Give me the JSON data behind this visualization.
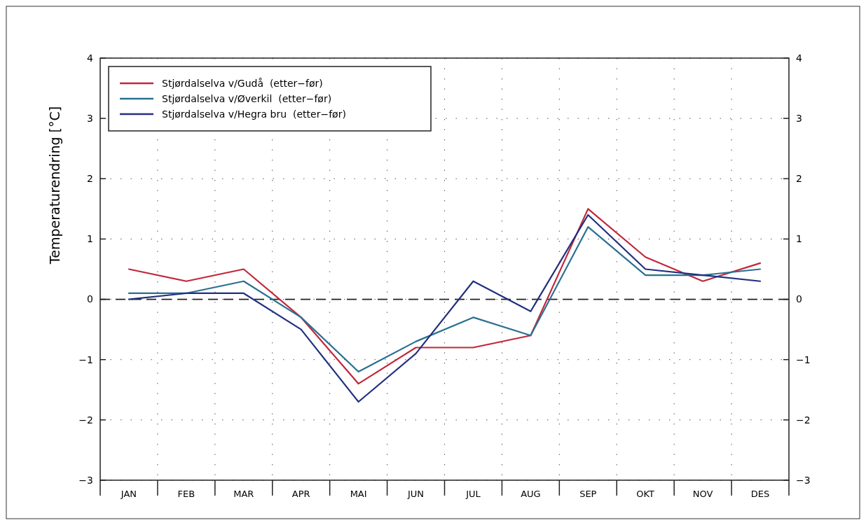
{
  "chart_data": {
    "type": "line",
    "ylabel": "Temperaturendring [°C]",
    "categories": [
      "JAN",
      "FEB",
      "MAR",
      "APR",
      "MAI",
      "JUN",
      "JUL",
      "AUG",
      "SEP",
      "OKT",
      "NOV",
      "DES"
    ],
    "series": [
      {
        "name": "Stjørdalselva v/Gudå  (etter−før)",
        "color": "#c0283a",
        "values": [
          0.5,
          0.3,
          0.5,
          -0.3,
          -1.4,
          -0.8,
          -0.8,
          -0.6,
          1.5,
          0.7,
          0.3,
          0.6
        ]
      },
      {
        "name": "Stjørdalselva v/Øverkil  (etter−før)",
        "color": "#2a7090",
        "values": [
          0.1,
          0.1,
          0.3,
          -0.3,
          -1.2,
          -0.7,
          -0.3,
          -0.6,
          1.2,
          0.4,
          0.4,
          0.5
        ]
      },
      {
        "name": "Stjørdalselva v/Hegra bru  (etter−før)",
        "color": "#22307f",
        "values": [
          0.0,
          0.1,
          0.1,
          -0.5,
          -1.7,
          -0.9,
          0.3,
          -0.2,
          1.4,
          0.5,
          0.4,
          0.3
        ]
      }
    ],
    "ylim": [
      -3,
      4
    ],
    "yticks": [
      -3,
      -2,
      -1,
      0,
      1,
      2,
      3,
      4
    ],
    "y2lim": [
      -3,
      4
    ],
    "y2ticks": [
      -3,
      -2,
      -1,
      0,
      1,
      2,
      3,
      4
    ],
    "grid": true,
    "legend": "top left",
    "marker": "none",
    "line_style": "solid",
    "ref_lines": [
      {
        "axis": "y",
        "value": 0,
        "label": null,
        "color": "#222222",
        "line_style": "dashed"
      }
    ]
  }
}
